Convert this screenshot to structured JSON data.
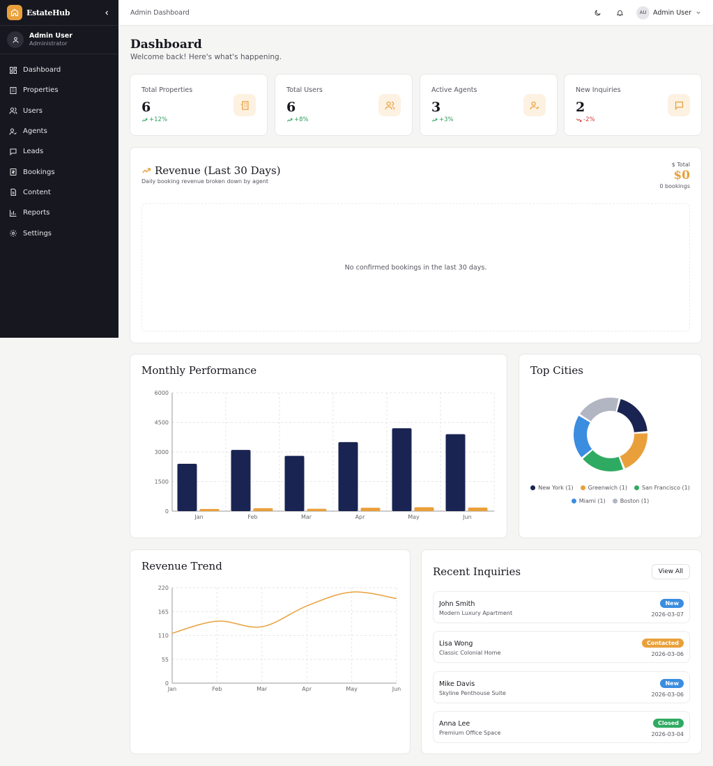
{
  "brand": {
    "name": "EstateHub"
  },
  "sidebar": {
    "user": {
      "name": "Admin User",
      "role": "Administrator"
    },
    "items": [
      {
        "label": "Dashboard",
        "icon": "dashboard-icon"
      },
      {
        "label": "Properties",
        "icon": "building-icon"
      },
      {
        "label": "Users",
        "icon": "users-icon"
      },
      {
        "label": "Agents",
        "icon": "agent-icon"
      },
      {
        "label": "Leads",
        "icon": "message-icon"
      },
      {
        "label": "Bookings",
        "icon": "booking-icon"
      },
      {
        "label": "Content",
        "icon": "document-icon"
      },
      {
        "label": "Reports",
        "icon": "chart-icon"
      },
      {
        "label": "Settings",
        "icon": "gear-icon"
      }
    ]
  },
  "topbar": {
    "title": "Admin Dashboard",
    "avatar_initials": "AU",
    "user_name": "Admin User"
  },
  "page": {
    "title": "Dashboard",
    "subtitle": "Welcome back! Here's what's happening."
  },
  "stats": [
    {
      "label": "Total Properties",
      "value": "6",
      "change": "+12%",
      "trend": "up",
      "icon": "building-icon"
    },
    {
      "label": "Total Users",
      "value": "6",
      "change": "+8%",
      "trend": "up",
      "icon": "users-icon"
    },
    {
      "label": "Active Agents",
      "value": "3",
      "change": "+3%",
      "trend": "up",
      "icon": "agent-icon"
    },
    {
      "label": "New Inquiries",
      "value": "2",
      "change": "-2%",
      "trend": "down",
      "icon": "message-icon"
    }
  ],
  "revenue": {
    "title": "Revenue (Last 30 Days)",
    "subtitle": "Daily booking revenue broken down by agent",
    "total_label": "Total",
    "total_value": "$0",
    "bookings": "0 bookings",
    "empty_message": "No confirmed bookings in the last 30 days."
  },
  "colors": {
    "accent": "#e9a03b",
    "navy": "#1a2452",
    "sidebar": "#17171f"
  },
  "chart_data": [
    {
      "type": "bar",
      "title": "Monthly Performance",
      "categories": [
        "Jan",
        "Feb",
        "Mar",
        "Apr",
        "May",
        "Jun"
      ],
      "series": [
        {
          "values": [
            2400,
            3100,
            2800,
            3500,
            4200,
            3900
          ],
          "color": "#1a2452"
        },
        {
          "values": [
            110,
            150,
            120,
            170,
            200,
            180
          ],
          "color": "#e9a03b"
        }
      ],
      "ylim": [
        0,
        6000
      ],
      "yticks": [
        "0",
        "1500",
        "3000",
        "4500",
        "6000"
      ],
      "grid": true
    },
    {
      "type": "pie",
      "title": "Top Cities",
      "slices": [
        {
          "label": "New York (1)",
          "value": 1,
          "color": "#1a2452"
        },
        {
          "label": "Greenwich (1)",
          "value": 1,
          "color": "#e9a03b"
        },
        {
          "label": "San Francisco (1)",
          "value": 1,
          "color": "#2faa62"
        },
        {
          "label": "Miami (1)",
          "value": 1,
          "color": "#3b8de0"
        },
        {
          "label": "Boston (1)",
          "value": 1,
          "color": "#b2b5c2"
        }
      ],
      "legend": "bottom"
    },
    {
      "type": "line",
      "title": "Revenue Trend",
      "categories": [
        "Jan",
        "Feb",
        "Mar",
        "Apr",
        "May",
        "Jun"
      ],
      "values": [
        115,
        143,
        130,
        178,
        210,
        195
      ],
      "color": "#e9a03b",
      "ylim": [
        0,
        220
      ],
      "yticks": [
        "0",
        "55",
        "110",
        "165",
        "220"
      ],
      "grid": true
    }
  ],
  "inquiries": {
    "title": "Recent Inquiries",
    "view_all": "View All",
    "items": [
      {
        "name": "John Smith",
        "property": "Modern Luxury Apartment",
        "status": "New",
        "status_color": "#3b8de0",
        "date": "2026-03-07"
      },
      {
        "name": "Lisa Wong",
        "property": "Classic Colonial Home",
        "status": "Contacted",
        "status_color": "#e9a03b",
        "date": "2026-03-06"
      },
      {
        "name": "Mike Davis",
        "property": "Skyline Penthouse Suite",
        "status": "New",
        "status_color": "#3b8de0",
        "date": "2026-03-06"
      },
      {
        "name": "Anna Lee",
        "property": "Premium Office Space",
        "status": "Closed",
        "status_color": "#2faa62",
        "date": "2026-03-04"
      }
    ]
  }
}
